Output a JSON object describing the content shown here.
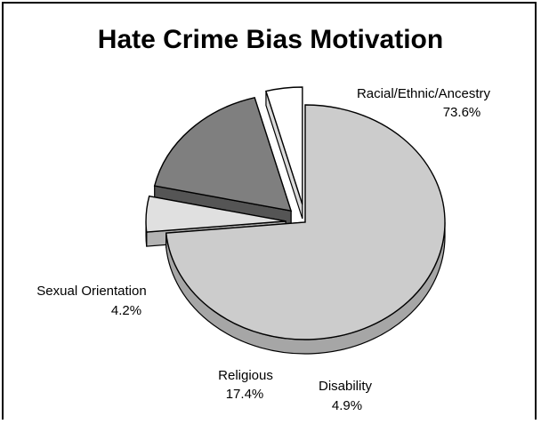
{
  "chart_data": {
    "type": "pie",
    "title": "Hate Crime Bias Motivation",
    "three_d": true,
    "exploded": true,
    "slices": [
      {
        "name": "Racial/Ethnic/Ancestry",
        "value": 73.6,
        "label": "73.6%",
        "color": "#cccccc",
        "side_color": "#a6a6a6"
      },
      {
        "name": "Disability",
        "value": 4.9,
        "label": "4.9%",
        "color": "#e0e0e0",
        "side_color": "#b3b3b3"
      },
      {
        "name": "Religious",
        "value": 17.4,
        "label": "17.4%",
        "color": "#7f7f7f",
        "side_color": "#555555"
      },
      {
        "name": "Sexual Orientation",
        "value": 4.2,
        "label": "4.2%",
        "color": "#ffffff",
        "side_color": "#d9d9d9"
      }
    ]
  }
}
